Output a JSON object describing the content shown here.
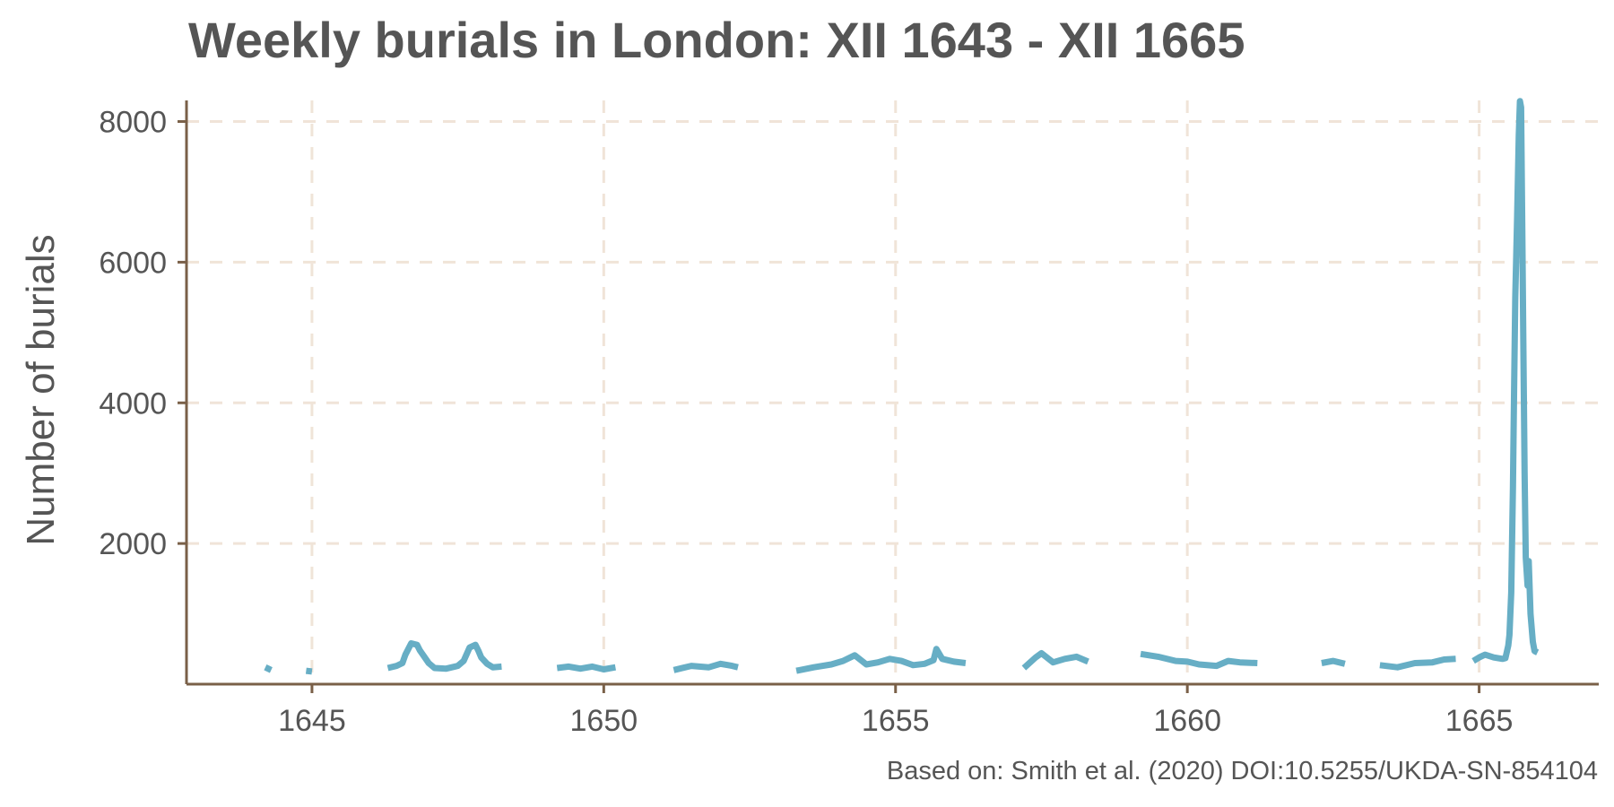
{
  "chart_data": {
    "type": "line",
    "title": "Weekly burials in London: XII 1643 - XII 1665",
    "xlabel": "",
    "ylabel": "Number of burials",
    "caption": "Based on: Smith et al. (2020) DOI:10.5255/UKDA-SN-854104",
    "xlim": [
      1642.85,
      1667.05
    ],
    "ylim": [
      0,
      8300
    ],
    "x_ticks": [
      1645,
      1650,
      1655,
      1660,
      1665
    ],
    "y_ticks": [
      2000,
      4000,
      6000,
      8000
    ],
    "grid": true,
    "colors": {
      "line": "#67aec5",
      "grid": "#f0e4d8",
      "axis": "#7a6048",
      "text": "#555555"
    },
    "series": [
      {
        "segments": [
          [
            [
              1644.2,
              240
            ],
            [
              1644.3,
              200
            ]
          ],
          [
            [
              1644.9,
              190
            ],
            [
              1645.0,
              180
            ]
          ],
          [
            [
              1646.3,
              230
            ],
            [
              1646.45,
              260
            ],
            [
              1646.55,
              300
            ],
            [
              1646.6,
              420
            ],
            [
              1646.7,
              580
            ],
            [
              1646.8,
              560
            ],
            [
              1646.85,
              480
            ],
            [
              1646.9,
              420
            ],
            [
              1647.0,
              300
            ],
            [
              1647.1,
              230
            ],
            [
              1647.3,
              220
            ],
            [
              1647.5,
              260
            ],
            [
              1647.6,
              330
            ],
            [
              1647.7,
              520
            ],
            [
              1647.8,
              560
            ],
            [
              1647.85,
              480
            ],
            [
              1647.9,
              380
            ],
            [
              1648.0,
              290
            ],
            [
              1648.1,
              240
            ],
            [
              1648.25,
              250
            ]
          ],
          [
            [
              1649.2,
              230
            ],
            [
              1649.4,
              250
            ],
            [
              1649.6,
              220
            ],
            [
              1649.8,
              250
            ],
            [
              1650.0,
              210
            ],
            [
              1650.2,
              240
            ]
          ],
          [
            [
              1651.2,
              200
            ],
            [
              1651.5,
              260
            ],
            [
              1651.8,
              240
            ],
            [
              1652.0,
              290
            ],
            [
              1652.2,
              260
            ],
            [
              1652.3,
              240
            ]
          ],
          [
            [
              1653.3,
              190
            ],
            [
              1653.6,
              240
            ],
            [
              1653.9,
              280
            ],
            [
              1654.1,
              330
            ],
            [
              1654.3,
              410
            ],
            [
              1654.5,
              280
            ],
            [
              1654.7,
              310
            ],
            [
              1654.9,
              360
            ],
            [
              1655.1,
              330
            ],
            [
              1655.3,
              270
            ],
            [
              1655.5,
              290
            ],
            [
              1655.65,
              340
            ],
            [
              1655.7,
              500
            ],
            [
              1655.8,
              360
            ],
            [
              1656.0,
              320
            ],
            [
              1656.2,
              300
            ]
          ],
          [
            [
              1657.2,
              230
            ],
            [
              1657.4,
              380
            ],
            [
              1657.5,
              440
            ],
            [
              1657.7,
              310
            ],
            [
              1657.9,
              360
            ],
            [
              1658.1,
              390
            ],
            [
              1658.3,
              320
            ]
          ],
          [
            [
              1659.2,
              430
            ],
            [
              1659.5,
              390
            ],
            [
              1659.8,
              330
            ],
            [
              1660.0,
              320
            ],
            [
              1660.2,
              280
            ],
            [
              1660.5,
              260
            ],
            [
              1660.7,
              330
            ],
            [
              1660.9,
              310
            ],
            [
              1661.2,
              300
            ]
          ],
          [
            [
              1662.3,
              300
            ],
            [
              1662.5,
              330
            ],
            [
              1662.7,
              290
            ]
          ],
          [
            [
              1663.3,
              270
            ],
            [
              1663.6,
              240
            ],
            [
              1663.9,
              300
            ],
            [
              1664.2,
              310
            ],
            [
              1664.4,
              350
            ],
            [
              1664.6,
              360
            ]
          ],
          [
            [
              1664.9,
              330
            ],
            [
              1665.0,
              380
            ],
            [
              1665.1,
              420
            ],
            [
              1665.25,
              380
            ],
            [
              1665.4,
              360
            ],
            [
              1665.45,
              370
            ],
            [
              1665.5,
              550
            ],
            [
              1665.52,
              700
            ],
            [
              1665.55,
              1300
            ],
            [
              1665.58,
              2800
            ],
            [
              1665.6,
              4200
            ],
            [
              1665.62,
              5500
            ],
            [
              1665.65,
              6600
            ],
            [
              1665.68,
              7800
            ],
            [
              1665.7,
              8290
            ],
            [
              1665.72,
              8200
            ],
            [
              1665.74,
              6500
            ],
            [
              1665.76,
              4700
            ],
            [
              1665.78,
              3000
            ],
            [
              1665.8,
              1800
            ],
            [
              1665.83,
              1400
            ],
            [
              1665.85,
              1750
            ],
            [
              1665.88,
              1000
            ],
            [
              1665.92,
              600
            ],
            [
              1665.95,
              470
            ],
            [
              1666.0,
              450
            ]
          ]
        ]
      }
    ]
  }
}
